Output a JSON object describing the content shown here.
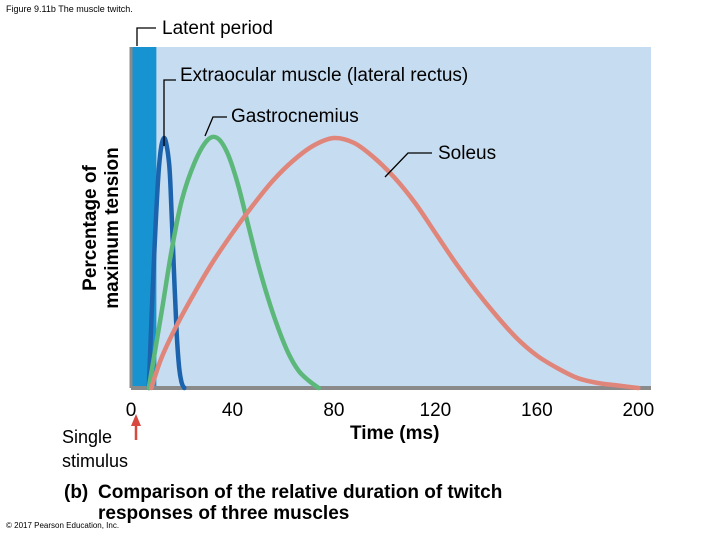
{
  "figure_label": "Figure 9.11b The muscle twitch.",
  "copyright": "© 2017 Pearson Education, Inc.",
  "latent_label": "Latent period",
  "stimulus_label": [
    "Single",
    "stimulus"
  ],
  "caption": {
    "letter": "(b)",
    "lines": [
      "Comparison of the relative duration of twitch",
      "responses of three muscles"
    ]
  },
  "colors": {
    "plot_background": "#c6dcf0",
    "latent_band": "#1793d1",
    "extraocular": "#1b63ad",
    "gastrocnemius": "#5cb87a",
    "soleus": "#e0857a",
    "stimulus_arrow": "#d7483f"
  },
  "chart_data": {
    "type": "line",
    "title": "",
    "xlabel": "Time (ms)",
    "ylabel": [
      "Percentage of",
      "maximum tension"
    ],
    "xlim": [
      0,
      205
    ],
    "ylim": [
      0,
      100
    ],
    "x_ticks": [
      0,
      40,
      80,
      120,
      160,
      200
    ],
    "x_tick_labels": [
      "0",
      "40",
      "80",
      "120",
      "160",
      "200"
    ],
    "latent_period_ms": [
      0,
      10
    ],
    "stimulus_time_ms": 0,
    "series": [
      {
        "name": "Extraocular muscle (lateral rectus)",
        "color_key": "extraocular",
        "x": [
          7,
          9,
          11,
          13,
          15,
          16,
          17,
          18,
          19,
          20,
          21
        ],
        "y": [
          0,
          50,
          88,
          100,
          90,
          70,
          45,
          22,
          8,
          2,
          0
        ]
      },
      {
        "name": "Gastrocnemius",
        "color_key": "gastrocnemius",
        "x": [
          7,
          12,
          16,
          20,
          25,
          30,
          34,
          38,
          42,
          46,
          50,
          54,
          58,
          62,
          66,
          70,
          74
        ],
        "y": [
          0,
          30,
          55,
          75,
          90,
          99,
          100,
          94,
          82,
          66,
          50,
          36,
          24,
          14,
          7,
          3,
          0
        ]
      },
      {
        "name": "Soleus",
        "color_key": "soleus",
        "x": [
          8,
          12,
          18,
          25,
          32,
          40,
          48,
          56,
          64,
          72,
          80,
          88,
          96,
          104,
          112,
          120,
          128,
          136,
          144,
          152,
          160,
          168,
          176,
          184,
          192,
          200
        ],
        "y": [
          0,
          12,
          25,
          38,
          50,
          62,
          73,
          83,
          91,
          97,
          100,
          98,
          92,
          84,
          74,
          62,
          50,
          39,
          29,
          20,
          13,
          8,
          4,
          2,
          1,
          0
        ]
      }
    ]
  }
}
